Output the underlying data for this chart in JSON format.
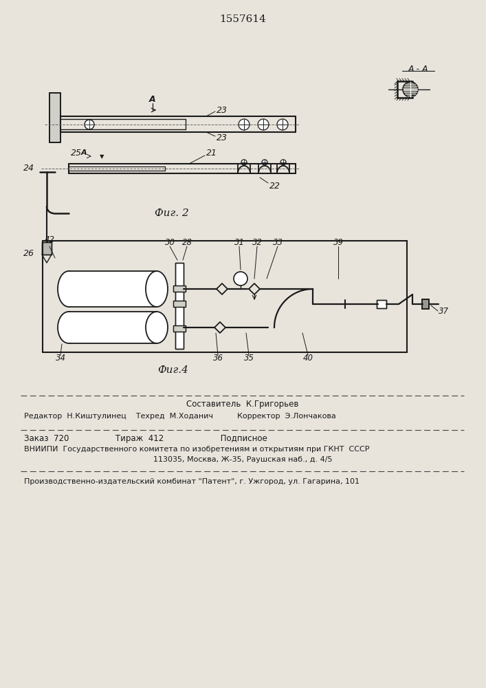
{
  "title": "1557614",
  "fig2_label": "Фиг. 2",
  "fig4_label": "Фиг.4",
  "bg_color": "#e8e4dc",
  "line_color": "#1a1a1a",
  "footer_line0": "Составитель  К.Григорьев",
  "footer_line1": "Редактор  Н.Киштулинец    Техред  М.Ходанич          Корректор  Э.Лончакова",
  "footer_line2": "Заказ  720                  Тираж  412                      Подписное",
  "footer_line3": "ВНИИПИ  Государственного комитета по изобретениям и открытиям при ГКНТ  СССР",
  "footer_line4": "113035, Москва, Ж-35, Раушская наб., д. 4/5",
  "footer_line5": "Производственно-издательский комбинат \"Патент\", г. Ужгород, ул. Гагарина, 101",
  "AA_label": "А - А"
}
